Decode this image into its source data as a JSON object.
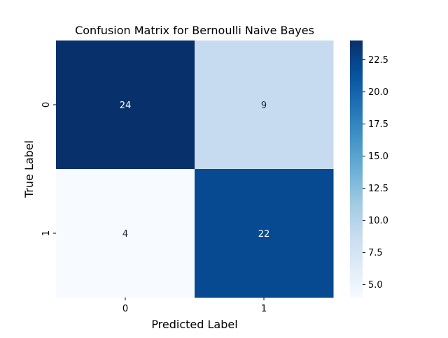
{
  "chart_data": {
    "type": "heatmap",
    "title": "Confusion Matrix for Bernoulli Naive Bayes",
    "xlabel": "Predicted Label",
    "ylabel": "True Label",
    "x_categories": [
      "0",
      "1"
    ],
    "y_categories": [
      "0",
      "1"
    ],
    "values": [
      [
        24,
        9
      ],
      [
        4,
        22
      ]
    ],
    "colormap": "Blues",
    "colorbar": {
      "range": [
        4,
        24
      ],
      "ticks": [
        5.0,
        7.5,
        10.0,
        12.5,
        15.0,
        17.5,
        20.0,
        22.5
      ],
      "tick_labels": [
        "5.0",
        "7.5",
        "10.0",
        "12.5",
        "15.0",
        "17.5",
        "20.0",
        "22.5"
      ]
    },
    "grid": false,
    "annotations": true
  }
}
